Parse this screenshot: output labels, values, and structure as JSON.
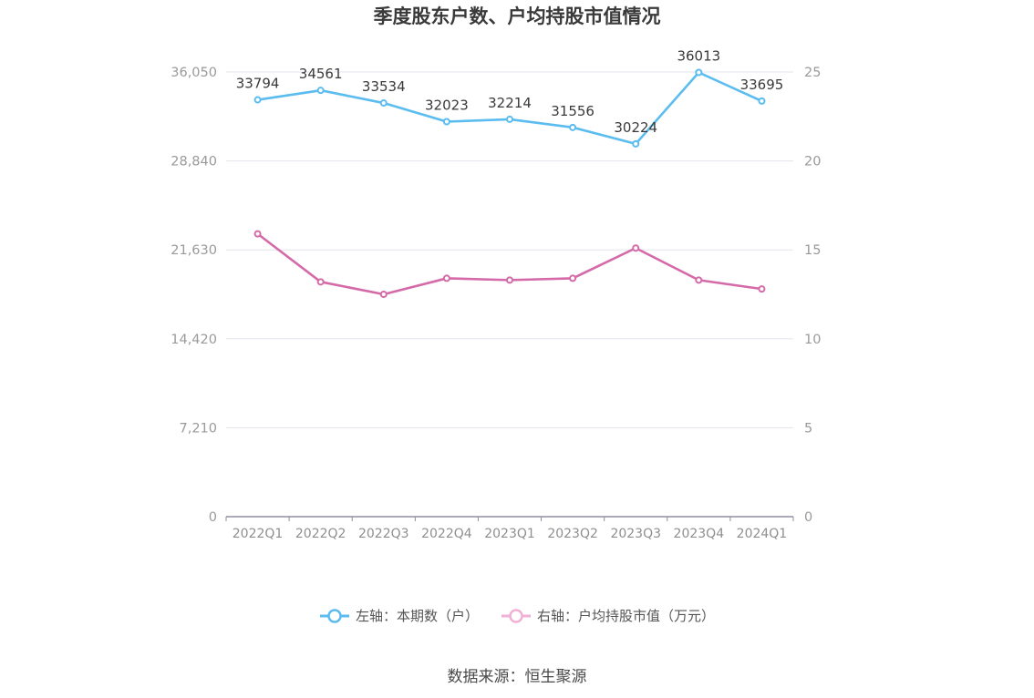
{
  "chart_data": {
    "type": "line",
    "title": "季度股东户数、户均持股市值情况",
    "categories": [
      "2022Q1",
      "2022Q2",
      "2022Q3",
      "2022Q4",
      "2023Q1",
      "2023Q2",
      "2023Q3",
      "2023Q4",
      "2024Q1"
    ],
    "left_axis": {
      "ticks": [
        "0",
        "7,210",
        "14,420",
        "21,630",
        "28,840",
        "36,050"
      ],
      "tick_values": [
        0,
        7210,
        14420,
        21630,
        28840,
        36050
      ],
      "range": [
        0,
        36050
      ]
    },
    "right_axis": {
      "ticks": [
        "0",
        "5",
        "10",
        "15",
        "20",
        "25"
      ],
      "tick_values": [
        0,
        5,
        10,
        15,
        20,
        25
      ],
      "range": [
        0,
        25
      ]
    },
    "series": [
      {
        "name": "左轴：本期数（户）",
        "axis": "left",
        "color": "#5bbcf0",
        "values": [
          33794,
          34561,
          33534,
          32023,
          32214,
          31556,
          30224,
          36013,
          33695
        ],
        "labels": [
          "33794",
          "34561",
          "33534",
          "32023",
          "32214",
          "31556",
          "30224",
          "36013",
          "33695"
        ]
      },
      {
        "name": "右轴：户均持股市值（万元）",
        "axis": "right",
        "color": "#d46aa8",
        "values": [
          15.9,
          13.2,
          12.5,
          13.4,
          13.3,
          13.4,
          15.1,
          13.3,
          12.8
        ]
      }
    ],
    "grid": true,
    "legend_position": "bottom-center"
  },
  "source_text": "数据来源：恒生聚源"
}
